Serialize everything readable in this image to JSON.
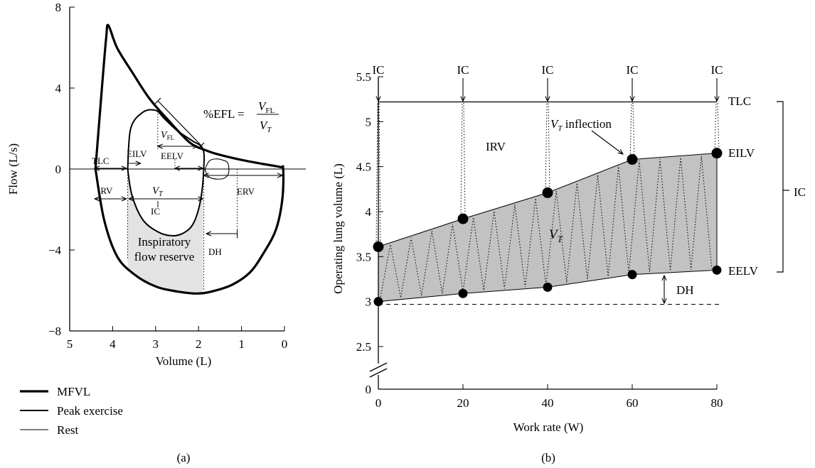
{
  "chart_data": [
    {
      "type": "line",
      "panel_label": "(a)",
      "xlabel": "Volume (L)",
      "ylabel": "Flow (L/s)",
      "xlim": [
        5,
        0
      ],
      "ylim": [
        -8,
        8
      ],
      "xticks": [
        "5",
        "4",
        "3",
        "2",
        "1",
        "0"
      ],
      "yticks": [
        "8",
        "4",
        "0",
        "−4",
        "−8"
      ],
      "legend_position": "bottom-left",
      "legend": [
        "MFVL",
        "Peak exercise",
        "Rest"
      ],
      "series": [
        {
          "name": "MFVL",
          "x": [
            4.4,
            4.25,
            4.15,
            4.1,
            3.9,
            3.55,
            3.15,
            2.7,
            2.2,
            1.8,
            1.5,
            1.0,
            0.5,
            0.1,
            0.03,
            0.05,
            0.2,
            0.5,
            0.8,
            1.2,
            1.6,
            2.0,
            2.5,
            3.0,
            3.5,
            3.9,
            4.2,
            4.4
          ],
          "y": [
            0,
            4.0,
            6.5,
            7.1,
            6.0,
            4.8,
            3.5,
            2.4,
            1.3,
            0.9,
            0.7,
            0.45,
            0.25,
            0.1,
            0,
            -1.5,
            -3.0,
            -4.2,
            -5.1,
            -5.7,
            -6.0,
            -6.15,
            -6.05,
            -5.8,
            -5.2,
            -4.3,
            -2.5,
            0
          ]
        },
        {
          "name": "Peak exercise",
          "x": [
            3.65,
            3.58,
            3.3,
            3.0,
            2.8,
            2.5,
            2.15,
            1.9,
            1.88,
            1.95,
            2.1,
            2.3,
            2.6,
            2.95,
            3.3,
            3.55,
            3.65
          ],
          "y": [
            0,
            2.0,
            2.8,
            2.9,
            2.5,
            1.9,
            1.4,
            1.0,
            0,
            -1.5,
            -2.6,
            -3.1,
            -3.3,
            -3.1,
            -2.5,
            -1.3,
            0
          ]
        },
        {
          "name": "Rest",
          "x": [
            1.85,
            1.75,
            1.6,
            1.45,
            1.32,
            1.3,
            1.4,
            1.55,
            1.7,
            1.8,
            1.85
          ],
          "y": [
            0,
            0.4,
            0.5,
            0.45,
            0.3,
            -0.2,
            -0.45,
            -0.5,
            -0.45,
            -0.3,
            0
          ]
        }
      ],
      "annotations": {
        "efl_formula_prefix": "%EFL =",
        "efl_numerator": "V",
        "efl_numerator_sub": "FL",
        "efl_denominator": "V",
        "efl_denominator_sub": "T",
        "vfl": "V",
        "vfl_sub": "FL",
        "tlc": "TLC",
        "eilv": "EILV",
        "eelv": "EELV",
        "irv": "IRV",
        "vt": "V",
        "vt_sub": "T",
        "ic": "IC",
        "erv": "ERV",
        "dh": "DH",
        "ifr_line1": "Inspiratory",
        "ifr_line2": "flow reserve"
      }
    },
    {
      "type": "area",
      "panel_label": "(b)",
      "xlabel": "Work rate (W)",
      "ylabel": "Operating lung volume (L)",
      "xlim": [
        0,
        80
      ],
      "ylim": [
        0,
        5.5
      ],
      "axis_break": true,
      "xticks": [
        "0",
        "20",
        "40",
        "60",
        "80"
      ],
      "yticks": [
        "0",
        "2.5",
        "3",
        "3.5",
        "4",
        "4.5",
        "5",
        "5.5"
      ],
      "x": [
        0,
        20,
        40,
        60,
        80
      ],
      "series": [
        {
          "name": "EILV",
          "values": [
            3.61,
            3.92,
            4.21,
            4.58,
            4.65
          ]
        },
        {
          "name": "EELV",
          "values": [
            3.0,
            3.09,
            3.16,
            3.3,
            3.35
          ]
        }
      ],
      "tlc_value": 5.22,
      "rest_eelv_value": 2.97,
      "annotations": {
        "ic_top": [
          "IC",
          "IC",
          "IC",
          "IC",
          "IC"
        ],
        "tlc": "TLC",
        "eilv": "EILV",
        "eelv": "EELV",
        "irv": "IRV",
        "vt": "V",
        "vt_sub": "T",
        "vt_inflection_prefix": "V",
        "vt_inflection_sub": "T",
        "vt_inflection_suffix": " inflection",
        "dh": "DH",
        "ic_right": "IC"
      }
    }
  ]
}
